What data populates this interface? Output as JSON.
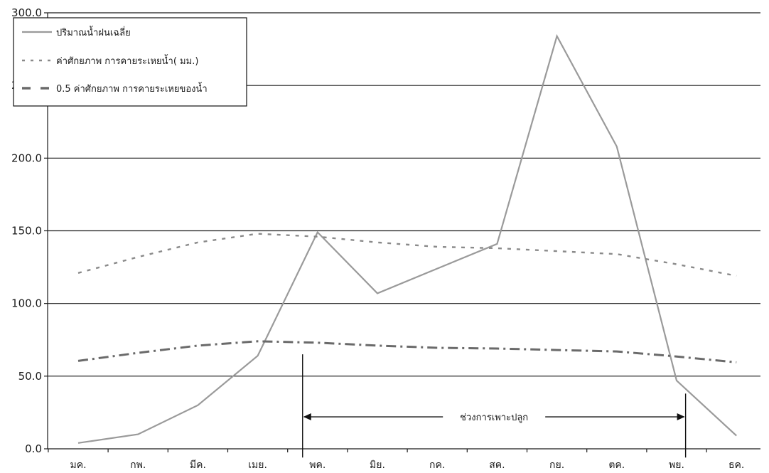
{
  "chart_data": {
    "type": "line",
    "title": "",
    "xlabel": "",
    "ylabel": "",
    "categories": [
      "มค.",
      "กพ.",
      "มีค.",
      "เมย.",
      "พค.",
      "มิย.",
      "กค.",
      "สค.",
      "กย.",
      "ตค.",
      "พย.",
      "ธค."
    ],
    "y_ticks": [
      "0.0",
      "50.0",
      "100.0",
      "150.0",
      "200.0",
      "250.0",
      "300.0"
    ],
    "ylim": [
      0,
      300
    ],
    "grid": true,
    "legend_position": "top-left",
    "series": [
      {
        "name": "ปริมาณน้ำฝนเฉลี่ย",
        "style": "solid",
        "color": "#9a9a9a",
        "values": [
          4,
          10,
          30,
          64,
          149,
          107,
          124,
          141,
          284,
          208,
          47,
          9
        ]
      },
      {
        "name": "ค่าศักยภาพ การคายระเหยน้ำ( มม.)",
        "style": "dotted",
        "color": "#8a8a8a",
        "values": [
          121,
          132,
          142,
          148,
          146,
          142,
          139,
          138,
          136,
          134,
          127,
          119
        ]
      },
      {
        "name": "0.5 ค่าศักยภาพ การคายระเหยของน้ำ",
        "style": "dashdot",
        "color": "#6a6a6a",
        "values": [
          60.5,
          66,
          71,
          74,
          73,
          71,
          69.5,
          69,
          68,
          67,
          63.5,
          59.5
        ]
      }
    ],
    "annotations": [
      {
        "text": "ช่วงการเพาะปลูก",
        "type": "range_arrow",
        "from_month": 3.75,
        "to_month": 10.15,
        "y": 22
      }
    ]
  }
}
